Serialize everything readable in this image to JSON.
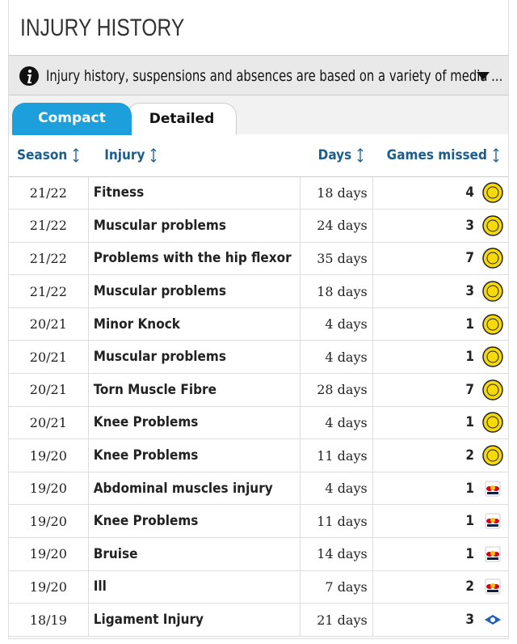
{
  "header": {
    "title": "INJURY HISTORY"
  },
  "info": {
    "text": "Injury history, suspensions and absences are based on a variety of media ..."
  },
  "tabs": [
    "Compact",
    "Detailed"
  ],
  "table": {
    "columns": [
      "Season",
      "Injury",
      "Days",
      "Games missed"
    ],
    "rows": [
      [
        "21/22",
        "Fitness",
        "18 days",
        4
      ],
      [
        "21/22",
        "Muscular problems",
        "24 days",
        3
      ],
      [
        "21/22",
        "Problems with the hip flexor",
        "35 days",
        7
      ],
      [
        "21/22",
        "Muscular problems",
        "18 days",
        3
      ],
      [
        "20/21",
        "Minor Knock",
        "4 days",
        1
      ],
      [
        "20/21",
        "Muscular problems",
        "4 days",
        1
      ],
      [
        "20/21",
        "Torn Muscle Fibre",
        "28 days",
        7
      ],
      [
        "20/21",
        "Knee Problems",
        "4 days",
        1
      ],
      [
        "19/20",
        "Knee Problems",
        "11 days",
        2
      ],
      [
        "19/20",
        "Abdominal muscles injury",
        "4 days",
        1
      ],
      [
        "19/20",
        "Knee Problems",
        "11 days",
        1
      ],
      [
        "19/20",
        "Bruise",
        "14 days",
        1
      ],
      [
        "19/20",
        "Ill",
        "7 days",
        2
      ],
      [
        "18/19",
        "Ligament Injury",
        "21 days",
        3
      ]
    ]
  }
}
